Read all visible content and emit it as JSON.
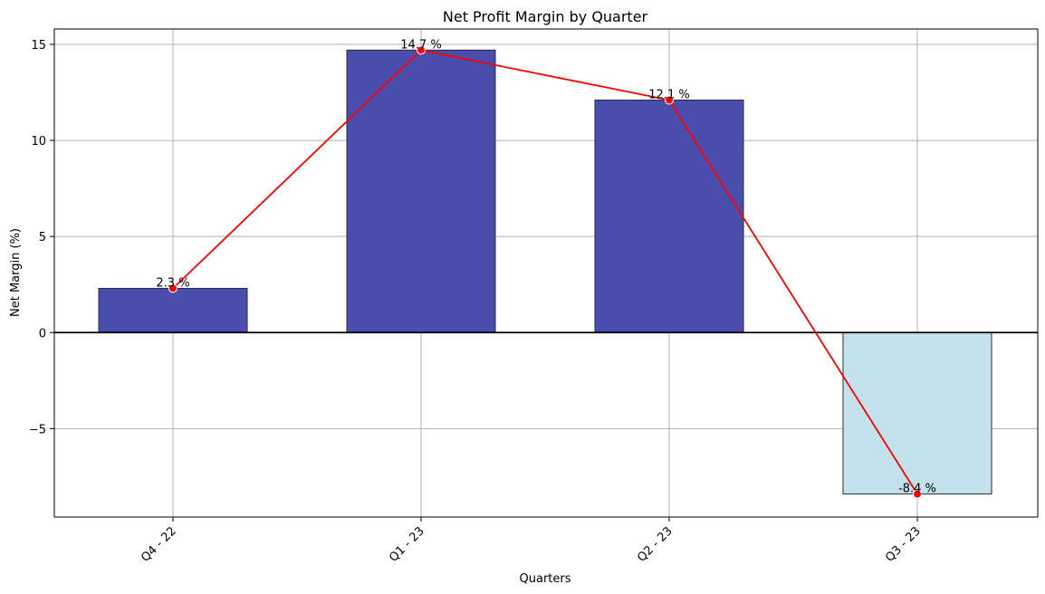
{
  "chart_data": {
    "type": "bar",
    "title": "Net Profit Margin by Quarter",
    "xlabel": "Quarters",
    "ylabel": "Net Margin (%)",
    "categories": [
      "Q4 - 22",
      "Q1 - 23",
      "Q2 - 23",
      "Q3 - 23"
    ],
    "values": [
      2.3,
      14.7,
      12.1,
      -8.4
    ],
    "data_labels": [
      "2.3 %",
      "14.7 %",
      "12.1 %",
      "-8.4 %"
    ],
    "ylim": [
      -9.6,
      15.8
    ],
    "yticks": [
      -5,
      0,
      5,
      10,
      15
    ],
    "ytick_labels": [
      "−5",
      "0",
      "5",
      "10",
      "15"
    ],
    "grid": true,
    "line_overlay": true,
    "colors": {
      "positive_bar": "#4b4dad",
      "negative_bar": "#c4e2ec",
      "bar_edge": "#2b2b3a",
      "line": "#ff0000",
      "grid": "#b0b0b0",
      "zero_line": "#000000"
    }
  }
}
